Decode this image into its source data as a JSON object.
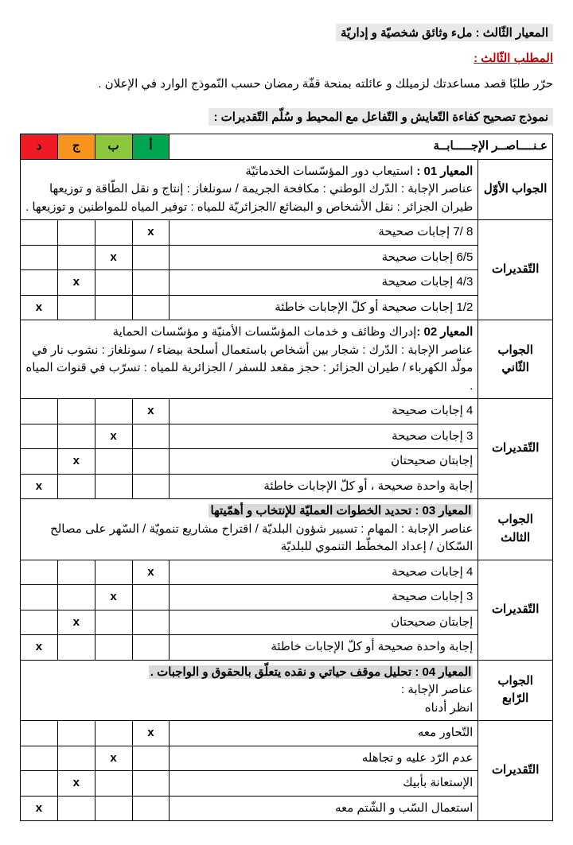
{
  "header": {
    "criterion_title": "المعيار الثّالث : ملء وثائق شخصيّة و إداريّة",
    "request_title": "المطلب الثّالث :",
    "instruction": "حرّر طلبًا قصد مساعدتك لزميلك و عائلته بمنحة قفّة رمضان حسب النّموذج الوارد في الإعلان .",
    "model_title": "نموذج تصحيح كفاءة التّعايش و التّفاعل مع المحيط و سُلّم التّقديرات :"
  },
  "table": {
    "head": {
      "elements": "عـنــــاصــر الإجـــــابــة",
      "a": "أ",
      "b": "ب",
      "c": "ج",
      "d": "د"
    },
    "sections": [
      {
        "answer_label": "الجواب الأوّل",
        "criterion_label": "المعيار 01 :",
        "criterion_text": " استيعاب دور المؤسّسات الخدماتيّة",
        "detail": "عناصر الإجابة :  الدّرك الوطني : مكافحة الجريمة / سونلغاز : إنتاج و نقل الطّاقة و توزيعها طيران الجزائر : نقل الأشخاص و البضائع  /الجزائريّة للمياه : توفير المياه للمواطنين و توزيعها .",
        "grades_label": "التّقديرات",
        "rows": [
          {
            "text": "8 /7 إجابات صحيحة",
            "marks": {
              "a": "x",
              "b": "",
              "c": "",
              "d": ""
            }
          },
          {
            "text": "6/5 إجابات صحيحة",
            "marks": {
              "a": "",
              "b": "x",
              "c": "",
              "d": ""
            }
          },
          {
            "text": "4/3 إجابات صحيحة",
            "marks": {
              "a": "",
              "b": "",
              "c": "x",
              "d": ""
            }
          },
          {
            "text": "1/2 إجابات صحيحة أو كلّ الإجابات خاطئة",
            "marks": {
              "a": "",
              "b": "",
              "c": "",
              "d": "x"
            }
          }
        ]
      },
      {
        "answer_label": "الجواب الثّاني",
        "criterion_label": "المعيار 02 :",
        "criterion_text": "إدراك وظائف و خدمات المؤسّسات الأمنيّة و مؤسّسات الحماية",
        "detail": "عناصر الإجابة : الدّرك : شجار بين أشخاص باستعمال أسلحة بيضاء /  سونلغاز : نشوب نار في مولّد الكهرباء / طيران الجزائر : حجز مقعد للسفر  / الجزائرية للمياه : تسرّب في قنوات المياه .",
        "grades_label": "التّقديرات",
        "rows": [
          {
            "text": "4 إجابات صحيحة",
            "marks": {
              "a": "x",
              "b": "",
              "c": "",
              "d": ""
            }
          },
          {
            "text": "3 إجابات صحيحة",
            "marks": {
              "a": "",
              "b": "x",
              "c": "",
              "d": ""
            }
          },
          {
            "text": "إجابتان صحيحتان",
            "marks": {
              "a": "",
              "b": "",
              "c": "x",
              "d": ""
            }
          },
          {
            "text": "إجابة واحدة صحيحة ، أو كلّ الإجابات خاطئة",
            "marks": {
              "a": "",
              "b": "",
              "c": "",
              "d": "x"
            }
          }
        ]
      },
      {
        "answer_label": "الجواب الثالث",
        "criterion_label": "المعيار 03 :",
        "criterion_text": " تحديد الخطوات العمليّة للإنتخاب و أهمّيتها",
        "highlight_criterion": true,
        "detail": "عناصر الإجابة : المهام : تسيير شؤون البلديّة / اقتراح مشاريع تنمويّة / السّهر على مصالح السّكان / إعداد المخطّط التنموي للبلديّة",
        "grades_label": "التّقديرات",
        "rows": [
          {
            "text": "4 إجابات صحيحة",
            "marks": {
              "a": "x",
              "b": "",
              "c": "",
              "d": ""
            }
          },
          {
            "text": "3 إجابات صحيحة",
            "marks": {
              "a": "",
              "b": "x",
              "c": "",
              "d": ""
            }
          },
          {
            "text": "إجابتان صحيحتان",
            "marks": {
              "a": "",
              "b": "",
              "c": "x",
              "d": ""
            }
          },
          {
            "text": "إجابة واحدة صحيحة أو كلّ الإجابات خاطئة",
            "marks": {
              "a": "",
              "b": "",
              "c": "",
              "d": "x"
            }
          }
        ]
      },
      {
        "answer_label": "الجواب الرّابع",
        "criterion_label": "المعيار 04 :",
        "criterion_text": " تحليل موقف حياتي و نقده يتعلّق بالحقوق و الواجبات .",
        "highlight_criterion": true,
        "detail": "عناصر الإجابة :\nانظر أدناه",
        "grades_label": "التّقديرات",
        "rows": [
          {
            "text": "التّحاور معه",
            "marks": {
              "a": "x",
              "b": "",
              "c": "",
              "d": ""
            }
          },
          {
            "text": "عدم الرّد عليه و تجاهله",
            "marks": {
              "a": "",
              "b": "x",
              "c": "",
              "d": ""
            }
          },
          {
            "text": "الإستعانة بأبيك",
            "marks": {
              "a": "",
              "b": "",
              "c": "x",
              "d": ""
            }
          },
          {
            "text": "استعمال السّب و الشّتم معه",
            "marks": {
              "a": "",
              "b": "",
              "c": "",
              "d": "x"
            }
          }
        ]
      }
    ]
  }
}
